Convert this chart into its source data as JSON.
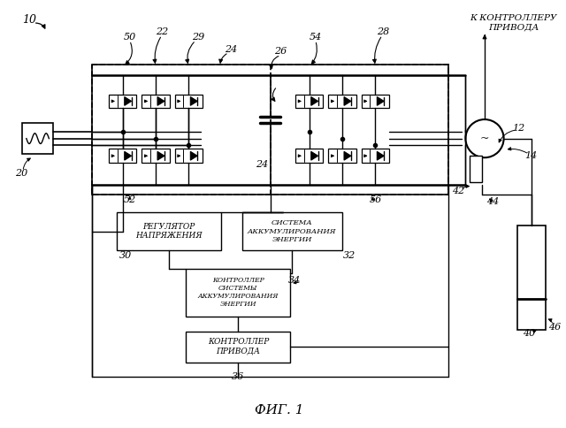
{
  "bg_color": "#ffffff",
  "lc": "#000000",
  "title": "ФИГ. 1",
  "label_10": "10",
  "label_20": "20",
  "label_22": "22",
  "label_24": "24",
  "label_26": "26",
  "label_28": "28",
  "label_29": "29",
  "label_50": "50",
  "label_54": "54",
  "label_52": "52",
  "label_56": "56",
  "label_12": "12",
  "label_14": "14",
  "label_30": "30",
  "label_32": "32",
  "label_34": "34",
  "label_36": "36",
  "label_40": "40",
  "label_42": "42",
  "label_44": "44",
  "label_46": "46",
  "box_reg_text": "РЕГУЛЯТОР\nНАПРЯЖЕНИЯ",
  "box_sae_text": "СИСТЕМА\nАККУМУЛИРОВАНИЯ\nЭНЕРГИИ",
  "box_csae_text": "КОНТРОЛЛЕР\nСИСТЕМЫ\nАККУМУЛИРОВАНИЯ\nЭНЕРГИИ",
  "box_drive_text": "КОНТРОЛЛЕР\nПРИВОДА",
  "top_right_text": "К КОНТРОЛЛЕРУ\nПРИВОДА"
}
